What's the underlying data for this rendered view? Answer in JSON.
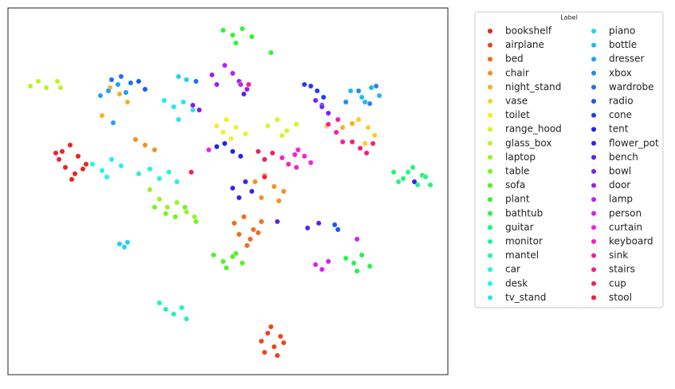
{
  "chart_data": {
    "type": "scatter",
    "legend_title": "Label",
    "xlim": [
      0,
      552
    ],
    "ylim": [
      460,
      0
    ],
    "legend": "right",
    "series": [
      {
        "name": "bookshelf",
        "color": "#e8231b",
        "x": [
          68,
          78,
          88,
          98,
          72,
          84,
          94,
          80
        ],
        "y": [
          180,
          172,
          186,
          196,
          200,
          208,
          202,
          215
        ]
      },
      {
        "name": "airplane",
        "color": "#f0421a",
        "x": [
          318,
          326,
          334,
          342,
          322,
          338,
          330,
          346
        ],
        "y": [
          418,
          408,
          425,
          412,
          432,
          436,
          400,
          420
        ]
      },
      {
        "name": "bed",
        "color": "#f26a1a",
        "x": [
          284,
          296,
          308,
          318,
          290,
          304,
          314,
          300
        ],
        "y": [
          270,
          262,
          278,
          268,
          284,
          290,
          282,
          298
        ]
      },
      {
        "name": "chair",
        "color": "#f5901e",
        "x": [
          310,
          322,
          334,
          346,
          318,
          340,
          160,
          172,
          184
        ],
        "y": [
          218,
          210,
          224,
          230,
          238,
          242,
          165,
          172,
          178
        ]
      },
      {
        "name": "night_stand",
        "color": "#f8b01e",
        "x": [
          128,
          140,
          150,
          420,
          432,
          118
        ],
        "y": [
          100,
          108,
          118,
          150,
          145,
          135
        ]
      },
      {
        "name": "vase",
        "color": "#fbd11e",
        "x": [
          440,
          452,
          460,
          448,
          400
        ],
        "y": [
          140,
          150,
          160,
          170,
          148
        ]
      },
      {
        "name": "toilet",
        "color": "#f2f01e",
        "x": [
          262,
          274,
          286,
          298,
          280,
          270
        ],
        "y": [
          148,
          140,
          150,
          158,
          164,
          156
        ]
      },
      {
        "name": "range_hood",
        "color": "#d7f51e",
        "x": [
          326,
          338,
          350,
          362,
          344
        ],
        "y": [
          148,
          140,
          154,
          146,
          160
        ]
      },
      {
        "name": "glass_box",
        "color": "#b8f51e",
        "x": [
          28,
          38,
          48,
          62,
          66
        ],
        "y": [
          98,
          92,
          100,
          92,
          100
        ]
      },
      {
        "name": "laptop",
        "color": "#95f51e",
        "x": [
          190,
          200,
          212,
          224,
          234,
          178
        ],
        "y": [
          240,
          250,
          244,
          256,
          262,
          228
        ]
      },
      {
        "name": "table",
        "color": "#72f51e",
        "x": [
          184,
          198,
          210,
          222,
          236
        ],
        "y": [
          250,
          258,
          262,
          250,
          268
        ]
      },
      {
        "name": "sofa",
        "color": "#4ef51e",
        "x": [
          258,
          270,
          282,
          294,
          274,
          286
        ],
        "y": [
          310,
          318,
          312,
          320,
          326,
          308
        ]
      },
      {
        "name": "plant",
        "color": "#2ef52e",
        "x": [
          270,
          282,
          294,
          306,
          286,
          330
        ],
        "y": [
          28,
          34,
          26,
          36,
          44,
          56
        ]
      },
      {
        "name": "bathtub",
        "color": "#1ef550",
        "x": [
          424,
          434,
          444,
          454,
          438
        ],
        "y": [
          314,
          320,
          310,
          324,
          330
        ]
      },
      {
        "name": "guitar",
        "color": "#1ef570",
        "x": [
          484,
          496,
          508,
          520,
          530
        ],
        "y": [
          206,
          214,
          200,
          210,
          222
        ]
      },
      {
        "name": "monitor",
        "color": "#1ef590",
        "x": [
          490,
          502,
          514,
          524
        ],
        "y": [
          218,
          206,
          222,
          212
        ]
      },
      {
        "name": "mantel",
        "color": "#1ef5b0",
        "x": [
          190,
          198,
          208,
          218,
          224
        ],
        "y": [
          370,
          378,
          384,
          376,
          390
        ]
      },
      {
        "name": "car",
        "color": "#1ef5d0",
        "x": [
          164,
          178,
          190,
          202,
          212
        ],
        "y": [
          208,
          202,
          214,
          206,
          218
        ]
      },
      {
        "name": "desk",
        "color": "#1ef5ea",
        "x": [
          106,
          118,
          130,
          142,
          124
        ],
        "y": [
          196,
          204,
          190,
          198,
          212
        ]
      },
      {
        "name": "tv_stand",
        "color": "#1ee8f5",
        "x": [
          196,
          208,
          220,
          232,
          214
        ],
        "y": [
          116,
          124,
          118,
          128,
          140
        ]
      },
      {
        "name": "piano",
        "color": "#1ed0f5",
        "x": [
          140,
          146,
          150,
          214,
          224
        ],
        "y": [
          296,
          300,
          294,
          86,
          90
        ]
      },
      {
        "name": "bottle",
        "color": "#1eb8f5",
        "x": [
          430,
          444,
          456,
          466,
          448
        ],
        "y": [
          104,
          112,
          100,
          110,
          118
        ]
      },
      {
        "name": "dresser",
        "color": "#1ea0f5",
        "x": [
          116,
          126,
          138,
          148,
          132
        ],
        "y": [
          110,
          104,
          96,
          106,
          144
        ]
      },
      {
        "name": "xbox",
        "color": "#1e88f5",
        "x": [
          424,
          440,
          454,
          462
        ],
        "y": [
          118,
          104,
          120,
          98
        ]
      },
      {
        "name": "wardrobe",
        "color": "#1e6ef5",
        "x": [
          130,
          142,
          154,
          236
        ],
        "y": [
          90,
          86,
          94,
          92
        ]
      },
      {
        "name": "radio",
        "color": "#1e55f5",
        "x": [
          410,
          414,
          164,
          172
        ],
        "y": [
          272,
          278,
          92,
          102
        ]
      },
      {
        "name": "cone",
        "color": "#1e3cf5",
        "x": [
          372,
          380,
          388,
          396,
          394
        ],
        "y": [
          96,
          98,
          104,
          112,
          122
        ]
      },
      {
        "name": "tent",
        "color": "#1e22f5",
        "x": [
          262,
          272,
          282,
          292
        ],
        "y": [
          174,
          170,
          180,
          186
        ]
      },
      {
        "name": "flower_pot",
        "color": "#3a1ef5",
        "x": [
          282,
          290,
          298,
          306,
          510
        ],
        "y": [
          226,
          238,
          218,
          230,
          218
        ]
      },
      {
        "name": "bench",
        "color": "#5a1ef5",
        "x": [
          376,
          390,
          296,
          338
        ],
        "y": [
          276,
          270,
          108,
          268
        ]
      },
      {
        "name": "bowl",
        "color": "#7a1ef5",
        "x": [
          386,
          394,
          402,
          232,
          240
        ],
        "y": [
          116,
          124,
          132,
          122,
          128
        ]
      },
      {
        "name": "door",
        "color": "#9a1ef5",
        "x": [
          290,
          300,
          256,
          262
        ],
        "y": [
          92,
          102,
          84,
          96
        ]
      },
      {
        "name": "lamp",
        "color": "#ba1ef5",
        "x": [
          272,
          282,
          292
        ],
        "y": [
          72,
          82,
          96
        ]
      },
      {
        "name": "person",
        "color": "#da1ef5",
        "x": [
          386,
          394,
          402,
          438
        ],
        "y": [
          322,
          328,
          318,
          290
        ]
      },
      {
        "name": "curtain",
        "color": "#f51ee8",
        "x": [
          364,
          372,
          380,
          252
        ],
        "y": [
          178,
          186,
          194,
          178
        ]
      },
      {
        "name": "keyboard",
        "color": "#f51ec8",
        "x": [
          344,
          352,
          360,
          362
        ],
        "y": [
          188,
          196,
          184,
          200
        ]
      },
      {
        "name": "sink",
        "color": "#f51ea0",
        "x": [
          402,
          412,
          414,
          420,
          302
        ],
        "y": [
          146,
          156,
          140,
          168,
          96
        ]
      },
      {
        "name": "stairs",
        "color": "#f51e78",
        "x": [
          432,
          442,
          450,
          458
        ],
        "y": [
          168,
          176,
          182,
          170
        ]
      },
      {
        "name": "cup",
        "color": "#f51e55",
        "x": [
          314,
          322,
          332,
          230
        ],
        "y": [
          180,
          190,
          182,
          206
        ]
      },
      {
        "name": "stool",
        "color": "#f51e35",
        "x": [
          60,
          64,
          322
        ],
        "y": [
          182,
          190,
          212
        ]
      }
    ]
  }
}
